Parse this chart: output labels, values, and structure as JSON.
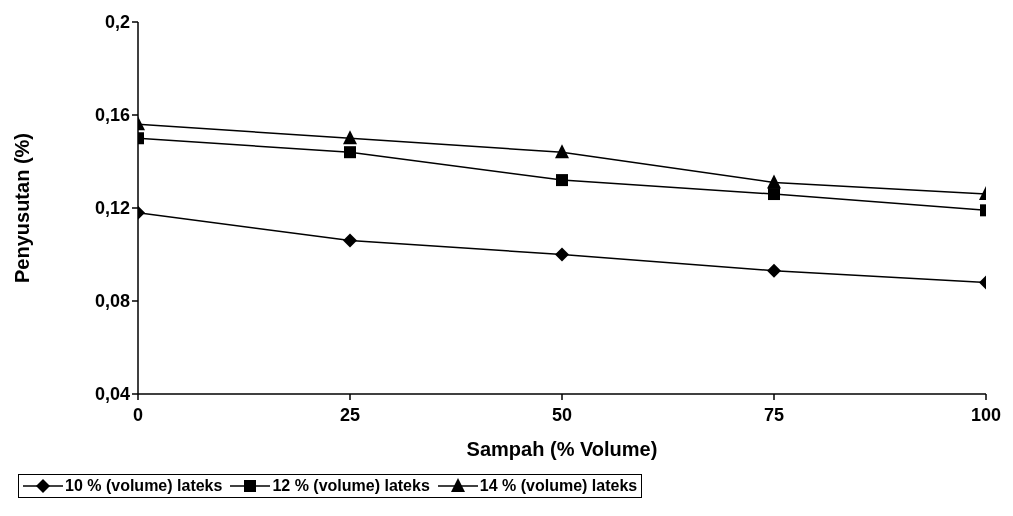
{
  "chart_data": {
    "type": "line",
    "xlabel": "Sampah (% Volume)",
    "ylabel": "Penyusutan (%)",
    "x": [
      0,
      25,
      50,
      75,
      100
    ],
    "series": [
      {
        "name": "10 % (volume) lateks",
        "color": "#000000",
        "marker": "diamond",
        "values": [
          0.118,
          0.106,
          0.1,
          0.093,
          0.088
        ]
      },
      {
        "name": "12 % (volume) lateks",
        "color": "#000000",
        "marker": "square",
        "values": [
          0.15,
          0.144,
          0.132,
          0.126,
          0.119
        ]
      },
      {
        "name": "14 % (volume) lateks",
        "color": "#000000",
        "marker": "triangle",
        "values": [
          0.156,
          0.15,
          0.144,
          0.131,
          0.126
        ]
      }
    ],
    "xlim": [
      0,
      100
    ],
    "xticks": [
      0,
      25,
      50,
      75,
      100
    ],
    "ylim": [
      0.04,
      0.2
    ],
    "yticks": [
      {
        "value": 0.04,
        "label": "0,04"
      },
      {
        "value": 0.08,
        "label": "0,08"
      },
      {
        "value": 0.12,
        "label": "0,12"
      },
      {
        "value": 0.16,
        "label": "0,16"
      },
      {
        "value": 0.2,
        "label": "0,2"
      }
    ],
    "grid": false,
    "legend": "bottom",
    "line_style": "solid"
  }
}
